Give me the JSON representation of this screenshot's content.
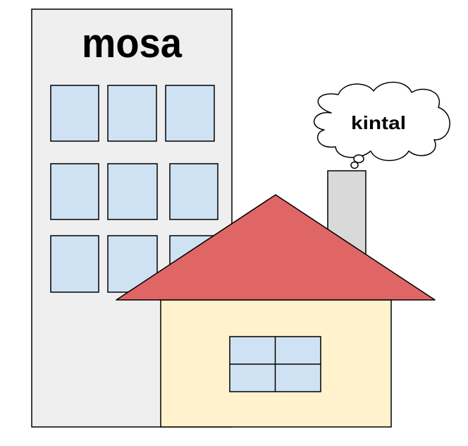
{
  "building": {
    "label": "mosa",
    "wall_color": "#efefef",
    "window_color": "#cfe2f3"
  },
  "house": {
    "roof_color": "#e06666",
    "wall_color": "#fff2cc",
    "window_color": "#cfe2f3",
    "chimney_color": "#d9d9d9"
  },
  "thought_bubble": {
    "label": "kintal",
    "fill_color": "#ffffff"
  },
  "colors": {
    "outline": "#000000",
    "background": "#ffffff"
  }
}
